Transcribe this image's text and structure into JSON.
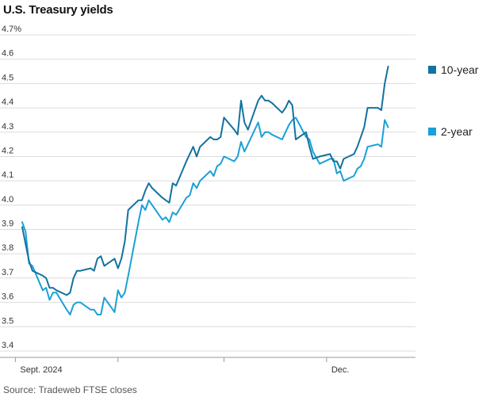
{
  "chart_data": {
    "type": "line",
    "title": "U.S. Treasury yields",
    "source": "Source: Tradeweb FTSE closes",
    "ylim": [
      3.4,
      4.7
    ],
    "yticks": [
      {
        "value": 3.4,
        "label": "3.4"
      },
      {
        "value": 3.5,
        "label": "3.5"
      },
      {
        "value": 3.6,
        "label": "3.6"
      },
      {
        "value": 3.7,
        "label": "3.7"
      },
      {
        "value": 3.8,
        "label": "3.8"
      },
      {
        "value": 3.9,
        "label": "3.9"
      },
      {
        "value": 4.0,
        "label": "4.0"
      },
      {
        "value": 4.1,
        "label": "4.1"
      },
      {
        "value": 4.2,
        "label": "4.2"
      },
      {
        "value": 4.3,
        "label": "4.3"
      },
      {
        "value": 4.4,
        "label": "4.4"
      },
      {
        "value": 4.5,
        "label": "4.5"
      },
      {
        "value": 4.6,
        "label": "4.6"
      },
      {
        "value": 4.7,
        "label": "4.7%"
      }
    ],
    "x_start": "2024-09-03",
    "x_end": "2024-12-27",
    "xticks": [
      {
        "date": "2024-09-01",
        "label": "Sept. 2024"
      },
      {
        "date": "2024-10-01",
        "label": ""
      },
      {
        "date": "2024-11-01",
        "label": ""
      },
      {
        "date": "2024-12-01",
        "label": "Dec."
      }
    ],
    "grid": true,
    "legend": "right",
    "series": [
      {
        "name": "10-year",
        "color": "#13729f",
        "points": [
          [
            "2024-09-03",
            3.91
          ],
          [
            "2024-09-04",
            3.84
          ],
          [
            "2024-09-05",
            3.77
          ],
          [
            "2024-09-06",
            3.73
          ],
          [
            "2024-09-09",
            3.71
          ],
          [
            "2024-09-10",
            3.7
          ],
          [
            "2024-09-11",
            3.66
          ],
          [
            "2024-09-12",
            3.66
          ],
          [
            "2024-09-13",
            3.65
          ],
          [
            "2024-09-16",
            3.63
          ],
          [
            "2024-09-17",
            3.64
          ],
          [
            "2024-09-18",
            3.7
          ],
          [
            "2024-09-19",
            3.73
          ],
          [
            "2024-09-20",
            3.73
          ],
          [
            "2024-09-23",
            3.74
          ],
          [
            "2024-09-24",
            3.73
          ],
          [
            "2024-09-25",
            3.78
          ],
          [
            "2024-09-26",
            3.79
          ],
          [
            "2024-09-27",
            3.75
          ],
          [
            "2024-09-30",
            3.78
          ],
          [
            "2024-10-01",
            3.74
          ],
          [
            "2024-10-02",
            3.78
          ],
          [
            "2024-10-03",
            3.85
          ],
          [
            "2024-10-04",
            3.98
          ],
          [
            "2024-10-07",
            4.02
          ],
          [
            "2024-10-08",
            4.02
          ],
          [
            "2024-10-09",
            4.06
          ],
          [
            "2024-10-10",
            4.09
          ],
          [
            "2024-10-11",
            4.07
          ],
          [
            "2024-10-14",
            4.03
          ],
          [
            "2024-10-15",
            4.02
          ],
          [
            "2024-10-16",
            4.01
          ],
          [
            "2024-10-17",
            4.09
          ],
          [
            "2024-10-18",
            4.08
          ],
          [
            "2024-10-21",
            4.18
          ],
          [
            "2024-10-22",
            4.21
          ],
          [
            "2024-10-23",
            4.24
          ],
          [
            "2024-10-24",
            4.2
          ],
          [
            "2024-10-25",
            4.24
          ],
          [
            "2024-10-28",
            4.28
          ],
          [
            "2024-10-29",
            4.27
          ],
          [
            "2024-10-30",
            4.27
          ],
          [
            "2024-10-31",
            4.28
          ],
          [
            "2024-11-01",
            4.36
          ],
          [
            "2024-11-04",
            4.31
          ],
          [
            "2024-11-05",
            4.29
          ],
          [
            "2024-11-06",
            4.43
          ],
          [
            "2024-11-07",
            4.34
          ],
          [
            "2024-11-08",
            4.31
          ],
          [
            "2024-11-11",
            4.43
          ],
          [
            "2024-11-12",
            4.45
          ],
          [
            "2024-11-13",
            4.43
          ],
          [
            "2024-11-14",
            4.43
          ],
          [
            "2024-11-15",
            4.42
          ],
          [
            "2024-11-18",
            4.38
          ],
          [
            "2024-11-19",
            4.4
          ],
          [
            "2024-11-20",
            4.43
          ],
          [
            "2024-11-21",
            4.41
          ],
          [
            "2024-11-22",
            4.27
          ],
          [
            "2024-11-25",
            4.3
          ],
          [
            "2024-11-26",
            4.24
          ],
          [
            "2024-11-27",
            4.19
          ],
          [
            "2024-11-29",
            4.2
          ],
          [
            "2024-12-02",
            4.21
          ],
          [
            "2024-12-03",
            4.18
          ],
          [
            "2024-12-04",
            4.18
          ],
          [
            "2024-12-05",
            4.15
          ],
          [
            "2024-12-06",
            4.19
          ],
          [
            "2024-12-09",
            4.21
          ],
          [
            "2024-12-10",
            4.24
          ],
          [
            "2024-12-11",
            4.28
          ],
          [
            "2024-12-12",
            4.32
          ],
          [
            "2024-12-13",
            4.4
          ],
          [
            "2024-12-16",
            4.4
          ],
          [
            "2024-12-17",
            4.39
          ],
          [
            "2024-12-18",
            4.5
          ],
          [
            "2024-12-19",
            4.57
          ]
        ]
      },
      {
        "name": "2-year",
        "color": "#1ba0d8",
        "points": [
          [
            "2024-09-03",
            3.93
          ],
          [
            "2024-09-04",
            3.89
          ],
          [
            "2024-09-05",
            3.76
          ],
          [
            "2024-09-06",
            3.75
          ],
          [
            "2024-09-09",
            3.65
          ],
          [
            "2024-09-10",
            3.66
          ],
          [
            "2024-09-11",
            3.61
          ],
          [
            "2024-09-12",
            3.64
          ],
          [
            "2024-09-13",
            3.64
          ],
          [
            "2024-09-16",
            3.57
          ],
          [
            "2024-09-17",
            3.55
          ],
          [
            "2024-09-18",
            3.59
          ],
          [
            "2024-09-19",
            3.6
          ],
          [
            "2024-09-20",
            3.6
          ],
          [
            "2024-09-23",
            3.57
          ],
          [
            "2024-09-24",
            3.57
          ],
          [
            "2024-09-25",
            3.55
          ],
          [
            "2024-09-26",
            3.55
          ],
          [
            "2024-09-27",
            3.62
          ],
          [
            "2024-09-30",
            3.56
          ],
          [
            "2024-10-01",
            3.65
          ],
          [
            "2024-10-02",
            3.62
          ],
          [
            "2024-10-03",
            3.64
          ],
          [
            "2024-10-04",
            3.71
          ],
          [
            "2024-10-07",
            3.93
          ],
          [
            "2024-10-08",
            4.0
          ],
          [
            "2024-10-09",
            3.98
          ],
          [
            "2024-10-10",
            4.02
          ],
          [
            "2024-10-11",
            4.0
          ],
          [
            "2024-10-14",
            3.94
          ],
          [
            "2024-10-15",
            3.95
          ],
          [
            "2024-10-16",
            3.93
          ],
          [
            "2024-10-17",
            3.97
          ],
          [
            "2024-10-18",
            3.96
          ],
          [
            "2024-10-21",
            4.03
          ],
          [
            "2024-10-22",
            4.04
          ],
          [
            "2024-10-23",
            4.09
          ],
          [
            "2024-10-24",
            4.07
          ],
          [
            "2024-10-25",
            4.1
          ],
          [
            "2024-10-28",
            4.14
          ],
          [
            "2024-10-29",
            4.12
          ],
          [
            "2024-10-30",
            4.16
          ],
          [
            "2024-10-31",
            4.17
          ],
          [
            "2024-11-01",
            4.2
          ],
          [
            "2024-11-04",
            4.18
          ],
          [
            "2024-11-05",
            4.2
          ],
          [
            "2024-11-06",
            4.26
          ],
          [
            "2024-11-07",
            4.22
          ],
          [
            "2024-11-08",
            4.25
          ],
          [
            "2024-11-11",
            4.34
          ],
          [
            "2024-11-12",
            4.28
          ],
          [
            "2024-11-13",
            4.3
          ],
          [
            "2024-11-14",
            4.3
          ],
          [
            "2024-11-15",
            4.29
          ],
          [
            "2024-11-18",
            4.27
          ],
          [
            "2024-11-19",
            4.3
          ],
          [
            "2024-11-20",
            4.33
          ],
          [
            "2024-11-21",
            4.35
          ],
          [
            "2024-11-22",
            4.36
          ],
          [
            "2024-11-25",
            4.28
          ],
          [
            "2024-11-26",
            4.27
          ],
          [
            "2024-11-27",
            4.22
          ],
          [
            "2024-11-29",
            4.17
          ],
          [
            "2024-12-02",
            4.19
          ],
          [
            "2024-12-03",
            4.19
          ],
          [
            "2024-12-04",
            4.13
          ],
          [
            "2024-12-05",
            4.14
          ],
          [
            "2024-12-06",
            4.1
          ],
          [
            "2024-12-09",
            4.12
          ],
          [
            "2024-12-10",
            4.15
          ],
          [
            "2024-12-11",
            4.16
          ],
          [
            "2024-12-12",
            4.19
          ],
          [
            "2024-12-13",
            4.24
          ],
          [
            "2024-12-16",
            4.25
          ],
          [
            "2024-12-17",
            4.24
          ],
          [
            "2024-12-18",
            4.35
          ],
          [
            "2024-12-19",
            4.32
          ]
        ]
      }
    ]
  }
}
